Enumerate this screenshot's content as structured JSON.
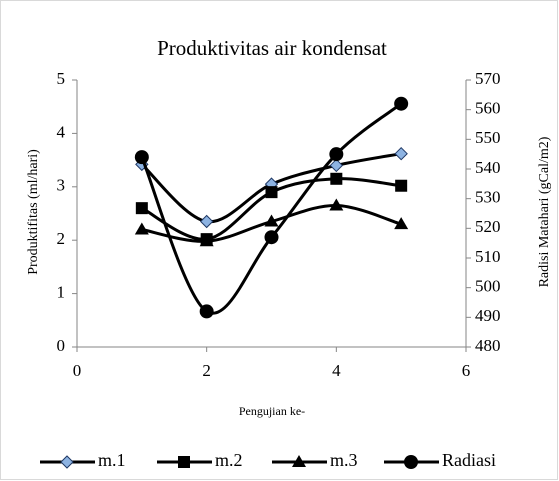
{
  "chart_data": {
    "type": "line",
    "title": "Produktivitas air kondensat",
    "xlabel": "Pengujian ke-",
    "ylabel": "Produktifitas  (ml/hari)",
    "y2label": "Radisi Matahari (gCal/m2)",
    "x": [
      1,
      2,
      3,
      4,
      5
    ],
    "xlim": [
      0,
      6
    ],
    "xticks": [
      0,
      2,
      4,
      6
    ],
    "ylim": [
      0,
      5
    ],
    "yticks": [
      0,
      1,
      2,
      3,
      4,
      5
    ],
    "y2lim": [
      480,
      570
    ],
    "y2ticks": [
      480,
      490,
      500,
      510,
      520,
      530,
      540,
      550,
      560,
      570
    ],
    "smooth": true,
    "series": [
      {
        "name": "m.1",
        "color": "#000000",
        "marker": "diamond",
        "marker_color": "#8db3e2",
        "values": [
          3.42,
          2.35,
          3.05,
          3.4,
          3.62
        ]
      },
      {
        "name": "m.2",
        "color": "#000000",
        "marker": "square",
        "marker_color": "#000000",
        "values": [
          2.6,
          2.02,
          2.9,
          3.15,
          3.02
        ]
      },
      {
        "name": "m.3",
        "color": "#000000",
        "marker": "triangle",
        "marker_color": "#000000",
        "values": [
          2.2,
          1.98,
          2.35,
          2.65,
          2.3
        ]
      },
      {
        "name": "Radiasi",
        "color": "#000000",
        "marker": "circle",
        "marker_color": "#000000",
        "axis": "y2",
        "values": [
          544,
          492,
          517,
          545,
          562
        ]
      }
    ]
  }
}
